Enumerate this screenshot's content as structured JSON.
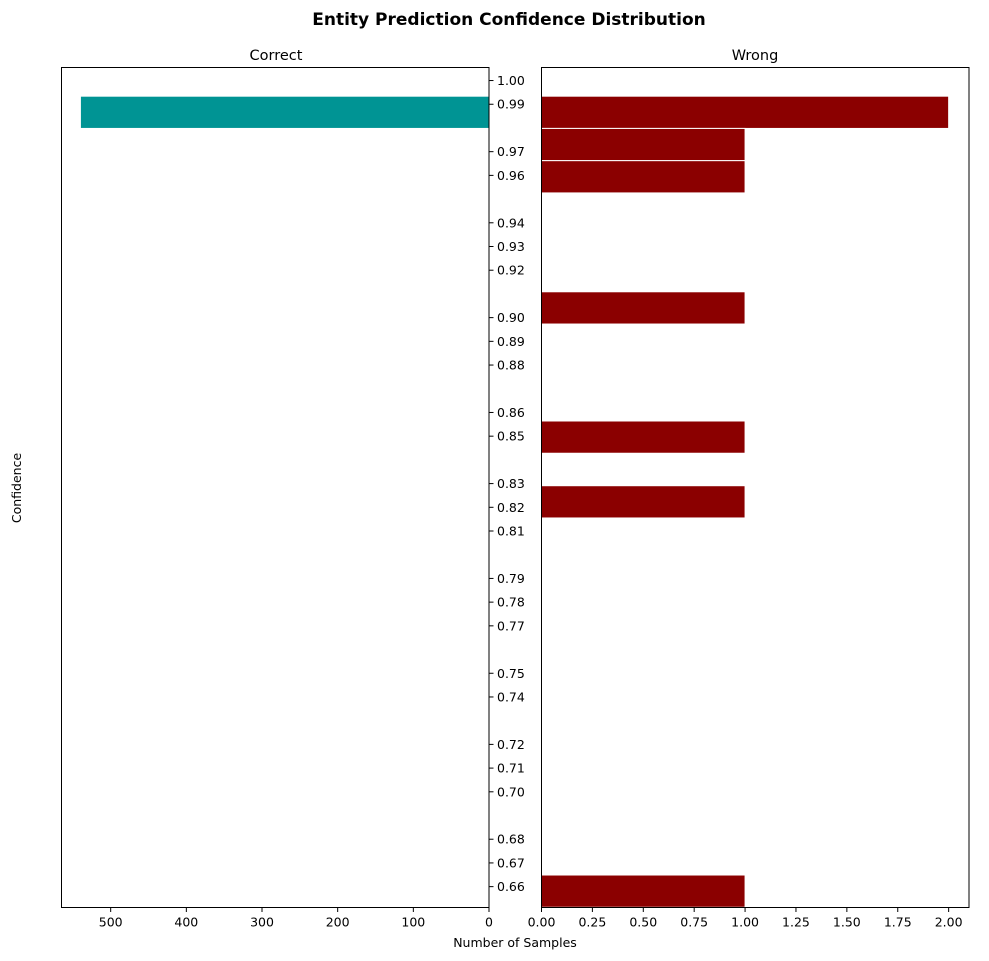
{
  "chart_data": {
    "type": "bar",
    "orientation": "horizontal",
    "title": "Entity Prediction Confidence Distribution",
    "xlabel": "Number of Samples",
    "ylabel": "Confidence",
    "y_ticks": [
      "1.00",
      "0.99",
      "0.97",
      "0.96",
      "0.94",
      "0.93",
      "0.92",
      "0.90",
      "0.89",
      "0.88",
      "0.86",
      "0.85",
      "0.83",
      "0.82",
      "0.81",
      "0.79",
      "0.78",
      "0.77",
      "0.75",
      "0.74",
      "0.72",
      "0.71",
      "0.70",
      "0.68",
      "0.67",
      "0.66"
    ],
    "y_tick_values": [
      1.0,
      0.99,
      0.97,
      0.96,
      0.94,
      0.93,
      0.92,
      0.9,
      0.89,
      0.88,
      0.86,
      0.85,
      0.83,
      0.82,
      0.81,
      0.79,
      0.78,
      0.77,
      0.75,
      0.74,
      0.72,
      0.71,
      0.7,
      0.68,
      0.67,
      0.66
    ],
    "ylim": [
      0.6512,
      1.0055
    ],
    "bin_height": 0.0136,
    "panels": [
      {
        "title": "Correct",
        "color": "#009494",
        "inverted_x": true,
        "xlim": [
          0,
          565
        ],
        "x_ticks": [
          500,
          400,
          300,
          200,
          100,
          0
        ],
        "x_tick_labels": [
          "500",
          "400",
          "300",
          "200",
          "100",
          "0"
        ],
        "bars": [
          {
            "y": 0.9866,
            "value": 540
          }
        ]
      },
      {
        "title": "Wrong",
        "color": "#8b0000",
        "inverted_x": false,
        "xlim": [
          0,
          2.1
        ],
        "x_ticks": [
          0,
          0.25,
          0.5,
          0.75,
          1.0,
          1.25,
          1.5,
          1.75,
          2.0
        ],
        "x_tick_labels": [
          "0.00",
          "0.25",
          "0.50",
          "0.75",
          "1.00",
          "1.25",
          "1.50",
          "1.75",
          "2.00"
        ],
        "bars": [
          {
            "y": 0.9866,
            "value": 2
          },
          {
            "y": 0.973,
            "value": 1
          },
          {
            "y": 0.9594,
            "value": 1
          },
          {
            "y": 0.9041,
            "value": 1
          },
          {
            "y": 0.8496,
            "value": 1
          },
          {
            "y": 0.8223,
            "value": 1
          },
          {
            "y": 0.6581,
            "value": 1
          }
        ]
      }
    ]
  }
}
